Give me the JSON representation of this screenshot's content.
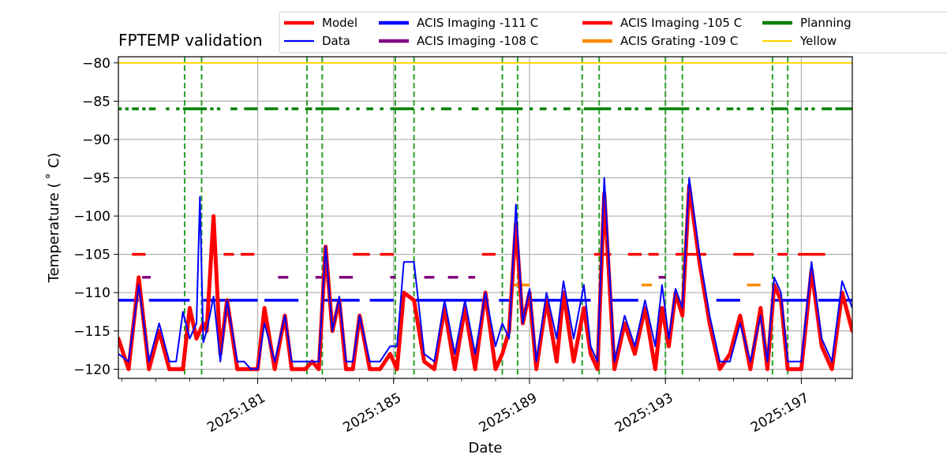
{
  "chart_data": {
    "type": "line",
    "title": "FPTEMP validation",
    "xlabel": "Date",
    "ylabel": "Temperature ($^\\circ$C)",
    "ylabel_display": "Temperature ( ˚ C)",
    "xlim": [
      176.9,
      198.5
    ],
    "ylim": [
      -121.2,
      -79.2
    ],
    "xticks": [
      {
        "value": 181,
        "label": "2025:181"
      },
      {
        "value": 185,
        "label": "2025:185"
      },
      {
        "value": 189,
        "label": "2025:189"
      },
      {
        "value": 193,
        "label": "2025:193"
      },
      {
        "value": 197,
        "label": "2025:197"
      }
    ],
    "yticks": [
      -80,
      -85,
      -90,
      -95,
      -100,
      -105,
      -110,
      -115,
      -120
    ],
    "ytick_labels": [
      "−80",
      "−85",
      "−90",
      "−95",
      "−100",
      "−105",
      "−110",
      "−115",
      "−120"
    ],
    "grid": true,
    "legend_placement": "top, outside plot",
    "legend": [
      {
        "label": "Model",
        "color": "#ff0000",
        "style": "solid-thick"
      },
      {
        "label": "Data",
        "color": "#0000ff",
        "style": "solid"
      },
      {
        "label": "ACIS Imaging -111 C",
        "color": "#0000ff",
        "style": "solid-thick"
      },
      {
        "label": "ACIS Imaging -108 C",
        "color": "#800080",
        "style": "solid-thick"
      },
      {
        "label": "ACIS Imaging -105 C",
        "color": "#ff0000",
        "style": "solid-thick"
      },
      {
        "label": "ACIS Grating -109 C",
        "color": "#ff8c00",
        "style": "solid-thick"
      },
      {
        "label": "Planning",
        "color": "#008000",
        "style": "solid-thick"
      },
      {
        "label": "Yellow",
        "color": "#ffd700",
        "style": "solid"
      }
    ],
    "hlines": [
      {
        "name": "Yellow",
        "y": -80,
        "color": "#ffd700"
      }
    ],
    "vlines": [
      178.85,
      179.35,
      182.45,
      182.9,
      185.05,
      185.6,
      188.2,
      188.65,
      190.55,
      191.05,
      193.0,
      193.5,
      196.15,
      196.6
    ],
    "series": [
      {
        "name": "Model",
        "color": "#ff0000",
        "x": [
          176.9,
          177.2,
          177.5,
          177.8,
          178.1,
          178.4,
          178.6,
          178.8,
          179.0,
          179.2,
          179.3,
          179.4,
          179.5,
          179.7,
          179.9,
          180.1,
          180.4,
          180.6,
          180.8,
          181.0,
          181.2,
          181.5,
          181.8,
          182.0,
          182.2,
          182.4,
          182.6,
          182.8,
          183.0,
          183.2,
          183.4,
          183.6,
          183.8,
          184.0,
          184.3,
          184.6,
          184.9,
          185.1,
          185.3,
          185.6,
          185.9,
          186.2,
          186.5,
          186.8,
          187.1,
          187.4,
          187.7,
          188.0,
          188.2,
          188.4,
          188.6,
          188.8,
          189.0,
          189.2,
          189.5,
          189.8,
          190.0,
          190.3,
          190.6,
          190.8,
          191.0,
          191.2,
          191.5,
          191.8,
          192.1,
          192.4,
          192.7,
          192.9,
          193.1,
          193.3,
          193.5,
          193.7,
          194.0,
          194.3,
          194.6,
          194.9,
          195.2,
          195.5,
          195.8,
          196.0,
          196.2,
          196.4,
          196.6,
          196.8,
          197.0,
          197.3,
          197.6,
          197.9,
          198.2,
          198.5
        ],
        "y": [
          -116,
          -120,
          -108,
          -120,
          -115,
          -120,
          -120,
          -120,
          -112,
          -116,
          -115,
          -114,
          -115,
          -100,
          -118,
          -111,
          -120,
          -120,
          -120,
          -120,
          -112,
          -120,
          -113,
          -120,
          -120,
          -120,
          -119,
          -120,
          -104,
          -115,
          -111,
          -120,
          -120,
          -113,
          -120,
          -120,
          -118,
          -120,
          -110,
          -111,
          -119,
          -120,
          -112,
          -120,
          -112,
          -120,
          -110,
          -120,
          -118,
          -115,
          -101,
          -114,
          -110,
          -120,
          -111,
          -119,
          -110,
          -119,
          -112,
          -118,
          -120,
          -97,
          -120,
          -114,
          -118,
          -112,
          -120,
          -112,
          -117,
          -110,
          -113,
          -96,
          -106,
          -114,
          -120,
          -118,
          -113,
          -120,
          -112,
          -120,
          -109,
          -111,
          -120,
          -120,
          -120,
          -107,
          -117,
          -120,
          -110,
          -115
        ]
      },
      {
        "name": "Data",
        "color": "#0000ff",
        "x": [
          176.9,
          177.2,
          177.5,
          177.8,
          178.1,
          178.4,
          178.6,
          178.8,
          179.0,
          179.2,
          179.3,
          179.4,
          179.5,
          179.7,
          179.9,
          180.1,
          180.4,
          180.6,
          180.8,
          181.0,
          181.2,
          181.5,
          181.8,
          182.0,
          182.2,
          182.4,
          182.6,
          182.8,
          183.0,
          183.2,
          183.4,
          183.6,
          183.8,
          184.0,
          184.3,
          184.6,
          184.9,
          185.1,
          185.3,
          185.6,
          185.9,
          186.2,
          186.5,
          186.8,
          187.1,
          187.4,
          187.7,
          188.0,
          188.2,
          188.4,
          188.6,
          188.8,
          189.0,
          189.2,
          189.5,
          189.8,
          190.0,
          190.3,
          190.6,
          190.8,
          191.0,
          191.2,
          191.5,
          191.8,
          192.1,
          192.4,
          192.7,
          192.9,
          193.1,
          193.3,
          193.5,
          193.7,
          194.0,
          194.3,
          194.6,
          194.9,
          195.2,
          195.5,
          195.8,
          196.0,
          196.2,
          196.4,
          196.6,
          196.8,
          197.0,
          197.3,
          197.6,
          197.9,
          198.2,
          198.5
        ],
        "y": [
          -118,
          -119,
          -109,
          -119,
          -114,
          -119,
          -119,
          -112.5,
          -116,
          -114,
          -97.5,
          -116.5,
          -115,
          -110.5,
          -119,
          -111,
          -119,
          -119,
          -120,
          -120,
          -114,
          -119,
          -113,
          -119,
          -119,
          -119,
          -119,
          -119,
          -104,
          -115,
          -110.5,
          -119,
          -119,
          -113,
          -119,
          -119,
          -117,
          -117,
          -106,
          -106,
          -118,
          -119,
          -111,
          -118,
          -111,
          -118,
          -110,
          -117,
          -114,
          -116,
          -98.5,
          -114,
          -109.5,
          -119,
          -110,
          -116,
          -108.5,
          -116,
          -109,
          -117,
          -119,
          -95,
          -119,
          -113,
          -117,
          -111,
          -117,
          -109,
          -116,
          -109.5,
          -112,
          -95,
          -105,
          -113,
          -119,
          -119,
          -114,
          -119,
          -113,
          -119,
          -108,
          -110,
          -119,
          -119,
          -119,
          -106,
          -116,
          -119,
          -108.5,
          -112
        ]
      },
      {
        "name": "ACIS Imaging -111 C",
        "color": "#0000ff",
        "segments": [
          [
            176.9,
            177.5
          ],
          [
            177.8,
            179.0
          ],
          [
            179.4,
            181.0
          ],
          [
            181.2,
            182.2
          ],
          [
            182.9,
            184.0
          ],
          [
            184.3,
            185.0
          ],
          [
            185.6,
            187.8
          ],
          [
            188.1,
            188.4
          ],
          [
            188.9,
            190.8
          ],
          [
            191.4,
            192.2
          ],
          [
            194.5,
            195.2
          ],
          [
            196.1,
            197.2
          ],
          [
            197.5,
            198.5
          ]
        ],
        "y": -111
      },
      {
        "name": "ACIS Imaging -108 C",
        "color": "#800080",
        "segments": [
          [
            177.6,
            177.85
          ],
          [
            181.6,
            181.9
          ],
          [
            182.7,
            182.95
          ],
          [
            183.4,
            183.8
          ],
          [
            184.9,
            185.05
          ],
          [
            185.9,
            186.2
          ],
          [
            186.6,
            186.9
          ],
          [
            187.2,
            187.4
          ],
          [
            192.8,
            193.0
          ]
        ],
        "y": -108
      },
      {
        "name": "ACIS Imaging -105 C",
        "color": "#ff0000",
        "segments": [
          [
            177.3,
            177.7
          ],
          [
            180.0,
            180.3
          ],
          [
            180.5,
            180.9
          ],
          [
            183.8,
            184.3
          ],
          [
            184.6,
            185.0
          ],
          [
            187.6,
            188.0
          ],
          [
            190.9,
            191.4
          ],
          [
            191.9,
            192.3
          ],
          [
            192.5,
            192.8
          ],
          [
            193.3,
            194.2
          ],
          [
            195.0,
            195.6
          ],
          [
            196.3,
            196.6
          ],
          [
            196.9,
            197.7
          ]
        ],
        "y": -105
      },
      {
        "name": "ACIS Grating -109 C",
        "color": "#ff8c00",
        "segments": [
          [
            188.5,
            189.0
          ],
          [
            192.3,
            192.6
          ],
          [
            195.4,
            195.8
          ]
        ],
        "y": -109
      },
      {
        "name": "Planning",
        "color": "#008000",
        "segments": [
          [
            176.9,
            177.0
          ],
          [
            177.1,
            177.2
          ],
          [
            177.3,
            177.5
          ],
          [
            177.6,
            177.7
          ],
          [
            177.8,
            178.0
          ],
          [
            178.3,
            178.4
          ],
          [
            178.6,
            178.7
          ],
          [
            178.8,
            179.5
          ],
          [
            179.6,
            179.7
          ],
          [
            179.8,
            179.9
          ],
          [
            180.2,
            180.4
          ],
          [
            180.6,
            181.0
          ],
          [
            181.2,
            181.6
          ],
          [
            181.8,
            181.9
          ],
          [
            182.0,
            182.2
          ],
          [
            182.4,
            182.6
          ],
          [
            182.7,
            183.4
          ],
          [
            183.6,
            183.7
          ],
          [
            183.9,
            184.0
          ],
          [
            184.2,
            184.4
          ],
          [
            184.6,
            184.7
          ],
          [
            184.9,
            185.6
          ],
          [
            185.8,
            185.9
          ],
          [
            186.1,
            186.2
          ],
          [
            186.4,
            186.7
          ],
          [
            186.9,
            187.0
          ],
          [
            187.3,
            187.5
          ],
          [
            187.7,
            187.8
          ],
          [
            188.0,
            188.8
          ],
          [
            189.0,
            189.1
          ],
          [
            189.3,
            189.5
          ],
          [
            189.7,
            189.8
          ],
          [
            190.0,
            190.2
          ],
          [
            190.4,
            190.5
          ],
          [
            190.6,
            191.4
          ],
          [
            191.6,
            191.7
          ],
          [
            191.8,
            192.0
          ],
          [
            192.1,
            192.2
          ],
          [
            192.4,
            192.6
          ],
          [
            192.8,
            193.7
          ],
          [
            193.9,
            194.0
          ],
          [
            194.2,
            194.3
          ],
          [
            194.5,
            194.6
          ],
          [
            194.8,
            195.0
          ],
          [
            195.1,
            195.2
          ],
          [
            195.4,
            195.6
          ],
          [
            195.8,
            195.9
          ],
          [
            196.1,
            196.6
          ],
          [
            196.8,
            197.0
          ],
          [
            197.1,
            197.2
          ],
          [
            197.3,
            197.4
          ],
          [
            197.6,
            197.9
          ],
          [
            198.0,
            198.5
          ]
        ],
        "y": -86
      }
    ]
  }
}
